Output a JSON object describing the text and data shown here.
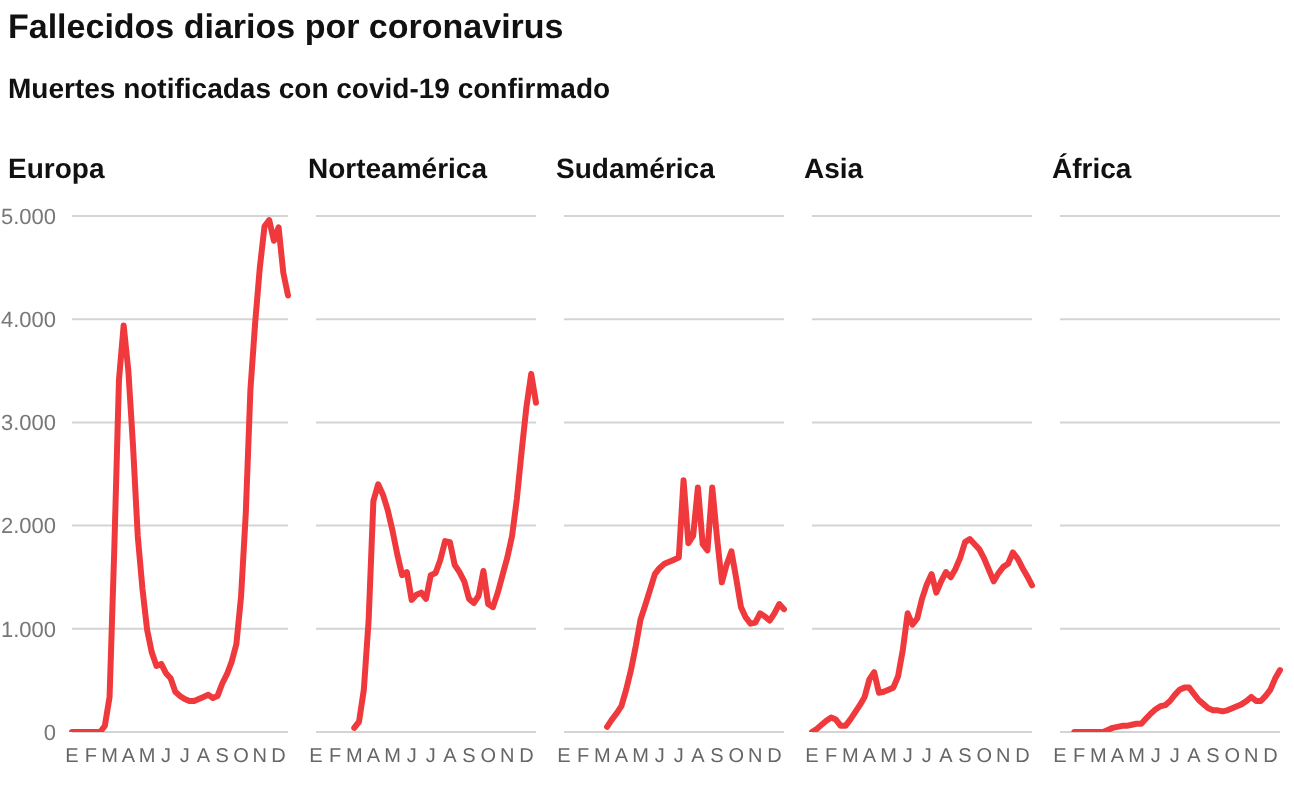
{
  "chart_data": [
    {
      "type": "other",
      "title": "Fallecidos diarios por coronavirus",
      "subtitle": "Muertes notificadas con covid-19 confirmado"
    },
    {
      "type": "line",
      "title": "Europa",
      "color": "#f0393c",
      "grid": "y",
      "ylim": [
        0,
        5000
      ],
      "yticks": [
        0,
        {
          "value": 1000,
          "label": "1.000"
        },
        {
          "value": 2000,
          "label": "2.000"
        },
        {
          "value": 3000,
          "label": "3.000"
        },
        {
          "value": 4000,
          "label": "4.000"
        },
        {
          "value": 5000,
          "label": "5.000"
        }
      ],
      "categories": [
        "E",
        null,
        null,
        null,
        "F",
        null,
        null,
        null,
        "M",
        null,
        null,
        null,
        "A",
        null,
        null,
        null,
        "M",
        null,
        null,
        null,
        "J",
        null,
        null,
        null,
        "J",
        null,
        null,
        null,
        "A",
        null,
        null,
        null,
        "S",
        null,
        null,
        null,
        "O",
        null,
        null,
        null,
        "N",
        null,
        null,
        null,
        "D",
        null,
        null
      ],
      "values": [
        0,
        0,
        0,
        0,
        0,
        0,
        0,
        60,
        340,
        1760,
        3410,
        3940,
        3500,
        2770,
        1900,
        1390,
        990,
        770,
        640,
        660,
        570,
        520,
        390,
        350,
        320,
        300,
        300,
        320,
        340,
        360,
        330,
        350,
        470,
        560,
        680,
        850,
        1310,
        2110,
        3320,
        3960,
        4500,
        4900,
        4960,
        4760,
        4890,
        4450,
        4230
      ]
    },
    {
      "type": "line",
      "title": "Norteamérica",
      "color": "#f0393c",
      "grid": "y",
      "tick_labels": "x",
      "ylim": [
        0,
        5000
      ],
      "yticks": [
        0,
        1000,
        2000,
        3000,
        4000,
        5000
      ],
      "categories": [
        "E",
        null,
        null,
        null,
        "F",
        null,
        null,
        null,
        "M",
        null,
        null,
        null,
        "A",
        null,
        null,
        null,
        "M",
        null,
        null,
        null,
        "J",
        null,
        null,
        null,
        "J",
        null,
        null,
        null,
        "A",
        null,
        null,
        null,
        "S",
        null,
        null,
        null,
        "O",
        null,
        null,
        null,
        "N",
        null,
        null,
        null,
        "D",
        null,
        null
      ],
      "values": [
        null,
        null,
        null,
        null,
        null,
        null,
        null,
        null,
        40,
        100,
        410,
        1080,
        2240,
        2400,
        2300,
        2150,
        1950,
        1720,
        1520,
        1550,
        1280,
        1330,
        1350,
        1290,
        1520,
        1540,
        1670,
        1850,
        1840,
        1620,
        1550,
        1460,
        1290,
        1250,
        1320,
        1560,
        1240,
        1210,
        1350,
        1520,
        1690,
        1900,
        2260,
        2720,
        3150,
        3470,
        3190
      ]
    },
    {
      "type": "line",
      "title": "Sudamérica",
      "color": "#f0393c",
      "grid": "y",
      "tick_labels": "x",
      "ylim": [
        0,
        5000
      ],
      "yticks": [
        0,
        1000,
        2000,
        3000,
        4000,
        5000
      ],
      "categories": [
        "E",
        null,
        null,
        null,
        "F",
        null,
        null,
        null,
        "M",
        null,
        null,
        null,
        "A",
        null,
        null,
        null,
        "M",
        null,
        null,
        null,
        "J",
        null,
        null,
        null,
        "J",
        null,
        null,
        null,
        "A",
        null,
        null,
        null,
        "S",
        null,
        null,
        null,
        "O",
        null,
        null,
        null,
        "N",
        null,
        null,
        null,
        "D",
        null,
        null
      ],
      "values": [
        null,
        null,
        null,
        null,
        null,
        null,
        null,
        null,
        null,
        50,
        120,
        180,
        250,
        410,
        600,
        830,
        1090,
        1230,
        1380,
        1530,
        1590,
        1630,
        1650,
        1670,
        1690,
        2440,
        1830,
        1900,
        2370,
        1820,
        1760,
        2370,
        1880,
        1450,
        1620,
        1750,
        1490,
        1210,
        1110,
        1050,
        1060,
        1150,
        1120,
        1080,
        1150,
        1240,
        1190
      ]
    },
    {
      "type": "line",
      "title": "Asia",
      "color": "#f0393c",
      "grid": "y",
      "tick_labels": "x",
      "ylim": [
        0,
        5000
      ],
      "yticks": [
        0,
        1000,
        2000,
        3000,
        4000,
        5000
      ],
      "categories": [
        "E",
        null,
        null,
        null,
        "F",
        null,
        null,
        null,
        "M",
        null,
        null,
        null,
        "A",
        null,
        null,
        null,
        "M",
        null,
        null,
        null,
        "J",
        null,
        null,
        null,
        "J",
        null,
        null,
        null,
        "A",
        null,
        null,
        null,
        "S",
        null,
        null,
        null,
        "O",
        null,
        null,
        null,
        "N",
        null,
        null,
        null,
        "D",
        null,
        null
      ],
      "values": [
        0,
        30,
        70,
        110,
        140,
        120,
        60,
        60,
        120,
        190,
        260,
        340,
        510,
        580,
        380,
        390,
        410,
        430,
        540,
        800,
        1150,
        1040,
        1100,
        1290,
        1430,
        1530,
        1350,
        1460,
        1550,
        1500,
        1580,
        1690,
        1840,
        1870,
        1820,
        1770,
        1680,
        1570,
        1460,
        1540,
        1600,
        1630,
        1740,
        1680,
        1590,
        1510,
        1420
      ]
    },
    {
      "type": "line",
      "title": "África",
      "color": "#f0393c",
      "grid": "y",
      "tick_labels": "x",
      "ylim": [
        0,
        5000
      ],
      "yticks": [
        0,
        1000,
        2000,
        3000,
        4000,
        5000
      ],
      "categories": [
        "E",
        null,
        null,
        null,
        "F",
        null,
        null,
        null,
        "M",
        null,
        null,
        null,
        "A",
        null,
        null,
        null,
        "M",
        null,
        null,
        null,
        "J",
        null,
        null,
        null,
        "J",
        null,
        null,
        null,
        "A",
        null,
        null,
        null,
        "S",
        null,
        null,
        null,
        "O",
        null,
        null,
        null,
        "N",
        null,
        null,
        null,
        "D",
        null,
        null
      ],
      "values": [
        null,
        null,
        null,
        0,
        0,
        0,
        0,
        0,
        0,
        0,
        20,
        40,
        50,
        60,
        60,
        70,
        80,
        80,
        130,
        180,
        220,
        250,
        260,
        300,
        360,
        410,
        430,
        430,
        370,
        310,
        270,
        230,
        210,
        210,
        200,
        210,
        230,
        250,
        270,
        300,
        340,
        300,
        300,
        350,
        410,
        520,
        600
      ]
    }
  ]
}
